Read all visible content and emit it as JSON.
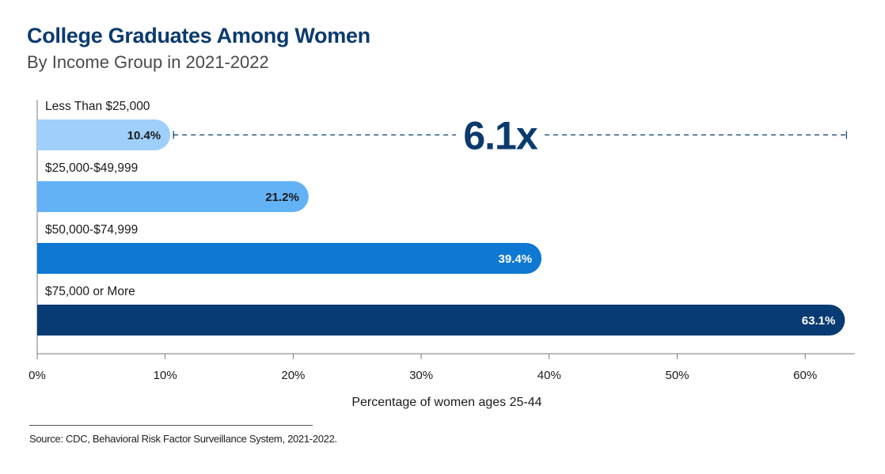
{
  "colors": {
    "title": "#0b3a6e",
    "subtitle": "#4a4a4a",
    "axis": "#7a7a7a",
    "text": "#1a1a1a",
    "bar_colors": [
      "#9fd0fb",
      "#63b2f5",
      "#0f78d2",
      "#083b73"
    ],
    "label_colors": [
      "#1a1a1a",
      "#1a1a1a",
      "#ffffff",
      "#ffffff"
    ],
    "annotation": "#0b3a6e"
  },
  "chart_data": {
    "type": "bar",
    "orientation": "horizontal",
    "title": "College Graduates Among Women",
    "subtitle": "By Income Group in 2021-2022",
    "categories": [
      "Less Than $25,000",
      "$25,000-$49,999",
      "$50,000-$74,999",
      "$75,000 or More"
    ],
    "values": [
      10.4,
      21.2,
      39.4,
      63.1
    ],
    "value_labels": [
      "10.4%",
      "21.2%",
      "39.4%",
      "63.1%"
    ],
    "xlabel": "Percentage of women ages 25-44",
    "ylabel": "",
    "xlim": [
      0,
      64
    ],
    "xticks": [
      0,
      10,
      20,
      30,
      40,
      50,
      60
    ],
    "xtick_labels": [
      "0%",
      "10%",
      "20%",
      "30%",
      "40%",
      "50%",
      "60%"
    ],
    "grid": false,
    "annotation": {
      "text": "6.1x",
      "from_value": 10.4,
      "to_value": 63.1,
      "row": 0
    }
  },
  "source": "Source: CDC, Behavioral Risk Factor Surveillance System, 2021-2022."
}
